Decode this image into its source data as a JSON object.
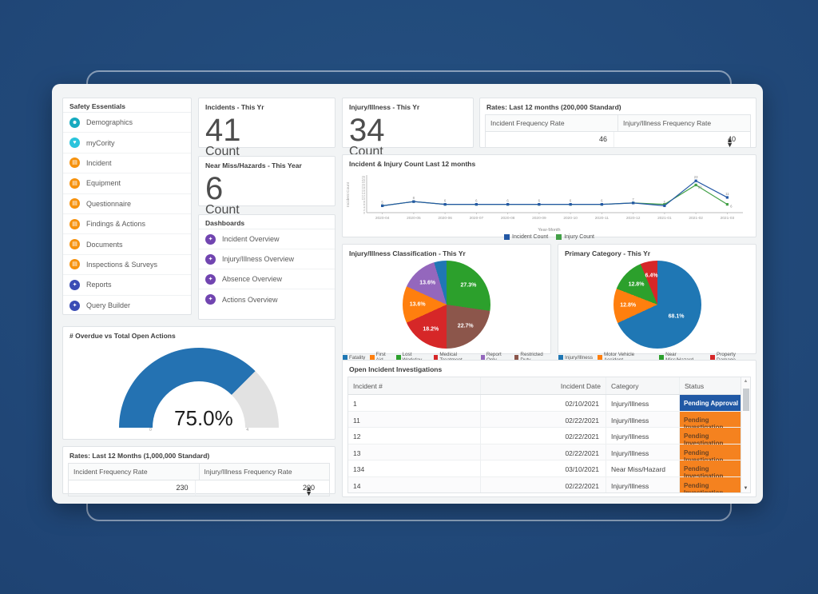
{
  "colors": {
    "background": "#1f4474",
    "accent_blue": "#2458a5",
    "accent_green": "#43a047",
    "status_pending_approval_bg": "#2159a5",
    "status_pending_investigation_bg": "#f5821f"
  },
  "icons": {
    "spinner_up": "▲",
    "spinner_down": "▼",
    "scroll_up": "▲",
    "scroll_down": "▼"
  },
  "sidebar": {
    "title": "Safety Essentials",
    "items": [
      {
        "label": "Demographics",
        "color": "#16aabf",
        "icon": "person-icon",
        "glyph": "☻"
      },
      {
        "label": "myCority",
        "color": "#2bc4dc",
        "icon": "heart-icon",
        "glyph": "♥"
      },
      {
        "label": "Incident",
        "color": "#f6920e",
        "icon": "module-icon",
        "glyph": "▤"
      },
      {
        "label": "Equipment",
        "color": "#f6920e",
        "icon": "module-icon",
        "glyph": "▤"
      },
      {
        "label": "Questionnaire",
        "color": "#f6920e",
        "icon": "module-icon",
        "glyph": "▤"
      },
      {
        "label": "Findings & Actions",
        "color": "#f6920e",
        "icon": "module-icon",
        "glyph": "▤"
      },
      {
        "label": "Documents",
        "color": "#f6920e",
        "icon": "module-icon",
        "glyph": "▤"
      },
      {
        "label": "Inspections & Surveys",
        "color": "#f6920e",
        "icon": "module-icon",
        "glyph": "▤"
      },
      {
        "label": "Reports",
        "color": "#3a4cb5",
        "icon": "bulb-icon",
        "glyph": "✦"
      },
      {
        "label": "Query Builder",
        "color": "#3a4cb5",
        "icon": "bulb-icon",
        "glyph": "✦"
      }
    ]
  },
  "dashboards": {
    "title": "Dashboards",
    "icon_color": "#7145b0",
    "items": [
      {
        "label": "Incident Overview"
      },
      {
        "label": "Injury/Illness Overview"
      },
      {
        "label": "Absence Overview"
      },
      {
        "label": "Actions Overview"
      }
    ]
  },
  "kpi": {
    "incidents": {
      "title": "Incidents - This Yr",
      "value": "41",
      "unit": "Count"
    },
    "injury": {
      "title": "Injury/Illness - This Yr",
      "value": "34",
      "unit": "Count"
    },
    "near_miss": {
      "title": "Near Miss/Hazards - This Year",
      "value": "6",
      "unit": "Count"
    }
  },
  "rates_200k": {
    "title": "Rates: Last 12 months (200,000 Standard)",
    "columns": [
      "Incident Frequency Rate",
      "Injury/Illness Frequency Rate"
    ],
    "values": [
      "46",
      "40"
    ]
  },
  "rates_1m": {
    "title": "Rates: Last 12 Months (1,000,000 Standard)",
    "columns": [
      "Incident Frequency Rate",
      "Injury/Illness Frequency Rate"
    ],
    "values": [
      "230",
      "200"
    ]
  },
  "gauge": {
    "title": "# Overdue vs Total Open Actions",
    "percent": 75,
    "label": "75.0%",
    "min": "0",
    "max": "4",
    "fill": "#2472b2",
    "track": "#e2e2e2"
  },
  "chart_data": [
    {
      "type": "line",
      "title": "Incident & Injury Count Last 12 months",
      "xlabel": "Year-Month",
      "ylabel": "Incident Count",
      "x": [
        "2020-04",
        "2020-05",
        "2020-06",
        "2020-07",
        "2020-08",
        "2020-09",
        "2020-10",
        "2020-11",
        "2020-12",
        "2021-01",
        "2021-02",
        "2021-03"
      ],
      "series": [
        {
          "name": "Incident Count",
          "color": "#2458a5",
          "values": [
            5,
            8,
            6,
            6,
            6,
            6,
            6,
            6,
            7,
            5,
            23,
            11
          ]
        },
        {
          "name": "Injury Count",
          "color": "#43a047",
          "values": [
            5,
            8,
            6,
            6,
            6,
            6,
            6,
            6,
            7,
            6,
            20,
            6
          ]
        }
      ],
      "ylim": [
        0,
        26
      ],
      "ytick_step": 2,
      "legend_position": "bottom"
    },
    {
      "type": "pie",
      "title": "Injury/Illness Classification - This Yr",
      "slices": [
        {
          "label": "Lost Workday",
          "value": 27.3,
          "color": "#2ca02c",
          "text": "27.3%"
        },
        {
          "label": "Restricted Duty",
          "value": 22.7,
          "color": "#8c564b",
          "text": "22.7%"
        },
        {
          "label": "Medical Treatment",
          "value": 18.2,
          "color": "#d62728",
          "text": "18.2%"
        },
        {
          "label": "First Aid",
          "value": 13.6,
          "color": "#ff7f0e",
          "text": "13.6%"
        },
        {
          "label": "Report Only",
          "value": 13.6,
          "color": "#9467bd",
          "text": "13.6%"
        },
        {
          "label": "Fatality",
          "value": 4.6,
          "color": "#1f77b4",
          "text": ""
        }
      ],
      "legend": [
        {
          "label": "Fatality",
          "color": "#1f77b4"
        },
        {
          "label": "First Aid",
          "color": "#ff7f0e"
        },
        {
          "label": "Lost Workday",
          "color": "#2ca02c"
        },
        {
          "label": "Medical Treatment",
          "color": "#d62728"
        },
        {
          "label": "Report Only",
          "color": "#9467bd"
        },
        {
          "label": "Restricted Duty",
          "color": "#8c564b"
        }
      ]
    },
    {
      "type": "pie",
      "title": "Primary Category - This Yr",
      "slices": [
        {
          "label": "Injury/Illness",
          "value": 68.1,
          "color": "#1f77b4",
          "text": "68.1%"
        },
        {
          "label": "Motor Vehicle Accident",
          "value": 12.8,
          "color": "#ff7f0e",
          "text": "12.8%"
        },
        {
          "label": "Near Miss/Hazard",
          "value": 12.8,
          "color": "#2ca02c",
          "text": "12.8%"
        },
        {
          "label": "Property Damage",
          "value": 6.4,
          "color": "#d62728",
          "text": "6.4%"
        }
      ],
      "legend": [
        {
          "label": "Injury/Illness",
          "color": "#1f77b4"
        },
        {
          "label": "Motor Vehicle Accident",
          "color": "#ff7f0e"
        },
        {
          "label": "Near Miss/Hazard",
          "color": "#2ca02c"
        },
        {
          "label": "Property Damage",
          "color": "#d62728"
        }
      ]
    }
  ],
  "table": {
    "title": "Open Incident Investigations",
    "columns": [
      "Incident #",
      "Incident Date",
      "Category",
      "Status"
    ],
    "rows": [
      {
        "id": "1",
        "date": "02/10/2021",
        "category": "Injury/Illness",
        "status": "Pending Approval"
      },
      {
        "id": "11",
        "date": "02/22/2021",
        "category": "Injury/Illness",
        "status": "Pending Investigation"
      },
      {
        "id": "12",
        "date": "02/22/2021",
        "category": "Injury/Illness",
        "status": "Pending Investigation"
      },
      {
        "id": "13",
        "date": "02/22/2021",
        "category": "Injury/Illness",
        "status": "Pending Investigation"
      },
      {
        "id": "134",
        "date": "03/10/2021",
        "category": "Near Miss/Hazard",
        "status": "Pending Investigation"
      },
      {
        "id": "14",
        "date": "02/22/2021",
        "category": "Injury/Illness",
        "status": "Pending Investigation"
      }
    ],
    "status_styles": {
      "Pending Approval": {
        "bg": "#2159a5",
        "fg": "#ffffff"
      },
      "Pending Investigation": {
        "bg": "#f5821f",
        "fg": "#6d4423"
      }
    }
  }
}
